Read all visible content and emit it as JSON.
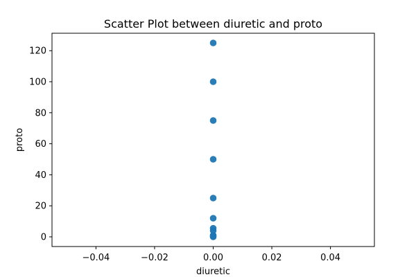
{
  "chart_data": {
    "type": "scatter",
    "title": "Scatter Plot between diuretic and proto",
    "xlabel": "diuretic",
    "ylabel": "proto",
    "xlim": [
      -0.055,
      0.055
    ],
    "ylim": [
      -6.25,
      131.25
    ],
    "xticks": [
      -0.04,
      -0.02,
      0.0,
      0.02,
      0.04
    ],
    "xtick_labels": [
      "−0.04",
      "−0.02",
      "0.00",
      "0.02",
      "0.04"
    ],
    "yticks": [
      0,
      20,
      40,
      60,
      80,
      100,
      120
    ],
    "ytick_labels": [
      "0",
      "20",
      "40",
      "60",
      "80",
      "100",
      "120"
    ],
    "grid": false,
    "legend": "none",
    "color": "#1f77b4",
    "points": [
      {
        "x": 0,
        "y": 0
      },
      {
        "x": 0,
        "y": 0.5
      },
      {
        "x": 0,
        "y": 1
      },
      {
        "x": 0,
        "y": 4
      },
      {
        "x": 0,
        "y": 5.5
      },
      {
        "x": 0,
        "y": 12
      },
      {
        "x": 0,
        "y": 25
      },
      {
        "x": 0,
        "y": 50
      },
      {
        "x": 0,
        "y": 75
      },
      {
        "x": 0,
        "y": 100
      },
      {
        "x": 0,
        "y": 125
      }
    ]
  }
}
